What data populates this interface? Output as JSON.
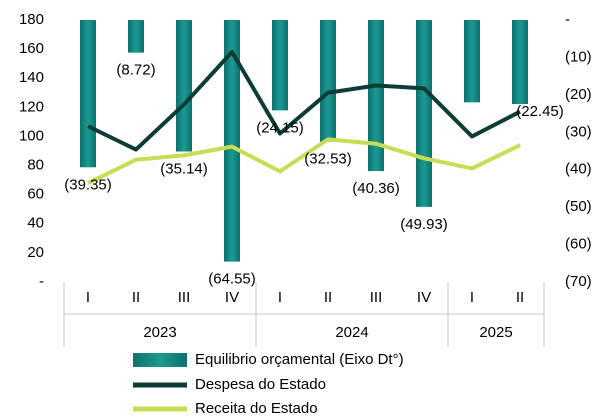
{
  "chart_data": {
    "type": "bar_line",
    "categories": [
      "I",
      "II",
      "III",
      "IV",
      "I",
      "II",
      "III",
      "IV",
      "I",
      "II"
    ],
    "groups": [
      {
        "label": "2023",
        "count": 4
      },
      {
        "label": "2024",
        "count": 4
      },
      {
        "label": "2025",
        "count": 2
      }
    ],
    "series": [
      {
        "name": "Equilibrio orçamental (Eixo Dt°)",
        "type": "bar",
        "axis": "y2",
        "color": "#0f7f78",
        "values": [
          -39.35,
          -8.72,
          -35.14,
          -64.55,
          -24.15,
          -32.53,
          -40.36,
          -49.93,
          -22.0,
          -22.45
        ],
        "value_labels": [
          "(39.35)",
          "(8.72)",
          "(35.14)",
          "(64.55)",
          "(24.15)",
          "(32.53)",
          "(40.36)",
          "(49.93)",
          null,
          "(22.45)"
        ]
      },
      {
        "name": "Despesa do Estado",
        "type": "line",
        "color": "#0d3b36",
        "values": [
          107,
          91,
          122,
          158,
          102,
          130,
          135,
          133,
          100,
          117
        ]
      },
      {
        "name": "Receita do Estado",
        "type": "line",
        "color": "#c8dc55",
        "values": [
          68,
          84,
          87,
          93,
          76,
          98,
          95,
          85,
          78,
          94
        ]
      }
    ],
    "ylim": [
      0,
      180
    ],
    "yticks": [
      {
        "value": 0,
        "label": "-"
      },
      20,
      40,
      60,
      80,
      100,
      120,
      140,
      160,
      180
    ],
    "y2lim": [
      0,
      -70
    ],
    "y2ticks": [
      {
        "value": 0,
        "label": "-"
      },
      {
        "value": -10,
        "label": "(10)"
      },
      {
        "value": -20,
        "label": "(20)"
      },
      {
        "value": -30,
        "label": "(30)"
      },
      {
        "value": -40,
        "label": "(40)"
      },
      {
        "value": -50,
        "label": "(50)"
      },
      {
        "value": -60,
        "label": "(60)"
      },
      {
        "value": -70,
        "label": "(70)"
      }
    ]
  }
}
